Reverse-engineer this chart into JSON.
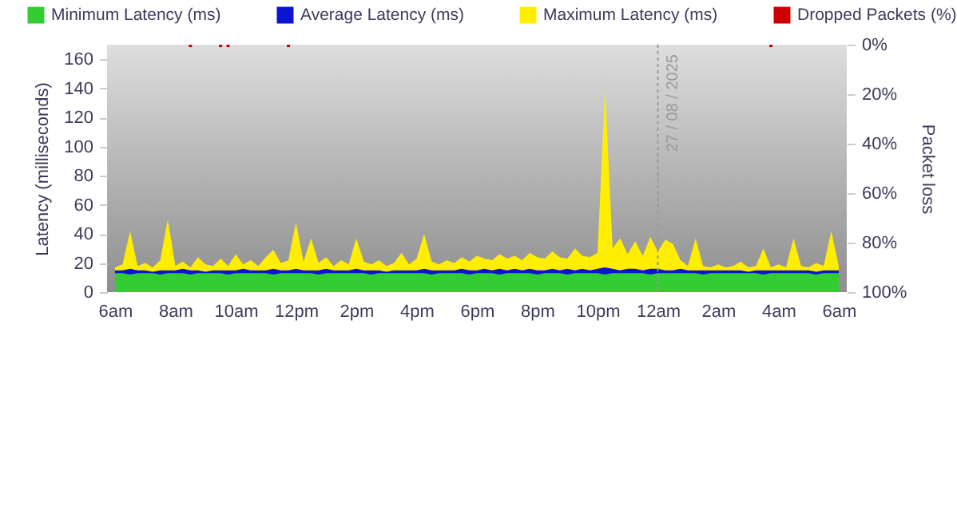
{
  "chart_data": {
    "type": "area",
    "ylabel": "Latency (milliseconds)",
    "y2label": "Packet loss",
    "legend": "top",
    "grid": false,
    "x": [
      "2025-08-26T06:00",
      "2025-08-26T06:15",
      "2025-08-26T06:30",
      "2025-08-26T06:45",
      "2025-08-26T07:00",
      "2025-08-26T07:15",
      "2025-08-26T07:30",
      "2025-08-26T07:45",
      "2025-08-26T08:00",
      "2025-08-26T08:15",
      "2025-08-26T08:30",
      "2025-08-26T08:45",
      "2025-08-26T09:00",
      "2025-08-26T09:15",
      "2025-08-26T09:30",
      "2025-08-26T09:45",
      "2025-08-26T10:00",
      "2025-08-26T10:15",
      "2025-08-26T10:30",
      "2025-08-26T10:45",
      "2025-08-26T11:00",
      "2025-08-26T11:15",
      "2025-08-26T11:30",
      "2025-08-26T11:45",
      "2025-08-26T12:00",
      "2025-08-26T12:15",
      "2025-08-26T12:30",
      "2025-08-26T12:45",
      "2025-08-26T13:00",
      "2025-08-26T13:15",
      "2025-08-26T13:30",
      "2025-08-26T13:45",
      "2025-08-26T14:00",
      "2025-08-26T14:15",
      "2025-08-26T14:30",
      "2025-08-26T14:45",
      "2025-08-26T15:00",
      "2025-08-26T15:15",
      "2025-08-26T15:30",
      "2025-08-26T15:45",
      "2025-08-26T16:00",
      "2025-08-26T16:15",
      "2025-08-26T16:30",
      "2025-08-26T16:45",
      "2025-08-26T17:00",
      "2025-08-26T17:15",
      "2025-08-26T17:30",
      "2025-08-26T17:45",
      "2025-08-26T18:00",
      "2025-08-26T18:15",
      "2025-08-26T18:30",
      "2025-08-26T18:45",
      "2025-08-26T19:00",
      "2025-08-26T19:15",
      "2025-08-26T19:30",
      "2025-08-26T19:45",
      "2025-08-26T20:00",
      "2025-08-26T20:15",
      "2025-08-26T20:30",
      "2025-08-26T20:45",
      "2025-08-26T21:00",
      "2025-08-26T21:15",
      "2025-08-26T21:30",
      "2025-08-26T21:45",
      "2025-08-26T22:00",
      "2025-08-26T22:15",
      "2025-08-26T22:30",
      "2025-08-26T22:45",
      "2025-08-26T23:00",
      "2025-08-26T23:15",
      "2025-08-26T23:30",
      "2025-08-26T23:45",
      "2025-08-27T00:00",
      "2025-08-27T00:15",
      "2025-08-27T00:30",
      "2025-08-27T00:45",
      "2025-08-27T01:00",
      "2025-08-27T01:15",
      "2025-08-27T01:30",
      "2025-08-27T01:45",
      "2025-08-27T02:00",
      "2025-08-27T02:15",
      "2025-08-27T02:30",
      "2025-08-27T02:45",
      "2025-08-27T03:00",
      "2025-08-27T03:15",
      "2025-08-27T03:30",
      "2025-08-27T03:45",
      "2025-08-27T04:00",
      "2025-08-27T04:15",
      "2025-08-27T04:30",
      "2025-08-27T04:45",
      "2025-08-27T05:00",
      "2025-08-27T05:15",
      "2025-08-27T05:30",
      "2025-08-27T05:45",
      "2025-08-27T06:00"
    ],
    "xlim": [
      "2025-08-26T06:00",
      "2025-08-27T06:00"
    ],
    "xticks": [
      {
        "value": "2025-08-26T06:00",
        "label": "6am"
      },
      {
        "value": "2025-08-26T08:00",
        "label": "8am"
      },
      {
        "value": "2025-08-26T10:00",
        "label": "10am"
      },
      {
        "value": "2025-08-26T12:00",
        "label": "12pm"
      },
      {
        "value": "2025-08-26T14:00",
        "label": "2pm"
      },
      {
        "value": "2025-08-26T16:00",
        "label": "4pm"
      },
      {
        "value": "2025-08-26T18:00",
        "label": "6pm"
      },
      {
        "value": "2025-08-26T20:00",
        "label": "8pm"
      },
      {
        "value": "2025-08-26T22:00",
        "label": "10pm"
      },
      {
        "value": "2025-08-27T00:00",
        "label": "12am"
      },
      {
        "value": "2025-08-27T02:00",
        "label": "2am"
      },
      {
        "value": "2025-08-27T04:00",
        "label": "4am"
      },
      {
        "value": "2025-08-27T06:00",
        "label": "6am"
      }
    ],
    "ylim": [
      0,
      170
    ],
    "yticks": [
      0,
      20,
      40,
      60,
      80,
      100,
      120,
      140,
      160
    ],
    "y2lim": [
      100,
      0
    ],
    "y2ticks": [
      {
        "value": 0,
        "label": "0%"
      },
      {
        "value": 20,
        "label": "20%"
      },
      {
        "value": 40,
        "label": "40%"
      },
      {
        "value": 60,
        "label": "60%"
      },
      {
        "value": 80,
        "label": "80%"
      },
      {
        "value": 100,
        "label": "100%"
      }
    ],
    "series": [
      {
        "name": "Minimum Latency (ms)",
        "color": "#33cc33",
        "values": [
          13,
          13,
          12,
          13,
          13,
          13,
          12,
          13,
          13,
          13,
          12,
          13,
          13,
          13,
          13,
          12,
          13,
          13,
          13,
          13,
          13,
          12,
          13,
          13,
          13,
          13,
          13,
          12,
          13,
          13,
          13,
          13,
          13,
          13,
          12,
          13,
          13,
          13,
          13,
          13,
          13,
          13,
          12,
          13,
          13,
          13,
          13,
          12,
          13,
          13,
          13,
          12,
          13,
          13,
          13,
          13,
          12,
          13,
          13,
          13,
          12,
          13,
          13,
          13,
          13,
          12,
          13,
          13,
          13,
          13,
          13,
          12,
          13,
          13,
          13,
          13,
          13,
          13,
          12,
          13,
          13,
          13,
          13,
          13,
          13,
          13,
          12,
          13,
          13,
          13,
          13,
          13,
          13,
          12,
          13,
          13,
          13
        ]
      },
      {
        "name": "Average Latency (ms)",
        "color": "#0a14d2",
        "values": [
          15,
          15,
          16,
          15,
          15,
          14,
          15,
          15,
          15,
          16,
          15,
          15,
          14,
          15,
          15,
          15,
          15,
          16,
          15,
          15,
          15,
          16,
          15,
          15,
          16,
          15,
          15,
          15,
          16,
          15,
          15,
          15,
          16,
          15,
          15,
          15,
          14,
          15,
          15,
          15,
          15,
          16,
          15,
          15,
          15,
          15,
          16,
          15,
          15,
          16,
          15,
          16,
          15,
          16,
          15,
          16,
          15,
          15,
          16,
          15,
          16,
          15,
          16,
          15,
          16,
          17,
          16,
          15,
          16,
          16,
          15,
          16,
          16,
          15,
          15,
          16,
          15,
          15,
          15,
          15,
          15,
          15,
          15,
          15,
          14,
          15,
          15,
          15,
          15,
          15,
          15,
          15,
          15,
          14,
          15,
          15,
          15
        ]
      },
      {
        "name": "Maximum Latency (ms)",
        "color": "#ffee00",
        "values": [
          17,
          19,
          42,
          18,
          20,
          17,
          22,
          50,
          18,
          21,
          17,
          24,
          19,
          18,
          23,
          18,
          26,
          19,
          22,
          18,
          24,
          29,
          20,
          22,
          48,
          21,
          37,
          20,
          24,
          18,
          22,
          19,
          37,
          21,
          19,
          22,
          18,
          20,
          27,
          19,
          23,
          40,
          21,
          19,
          22,
          20,
          24,
          21,
          25,
          23,
          22,
          26,
          23,
          25,
          22,
          27,
          24,
          23,
          28,
          24,
          23,
          30,
          25,
          24,
          27,
          140,
          30,
          37,
          26,
          35,
          25,
          38,
          28,
          36,
          33,
          22,
          18,
          37,
          18,
          17,
          19,
          17,
          18,
          21,
          17,
          18,
          30,
          17,
          19,
          17,
          37,
          18,
          17,
          20,
          18,
          42,
          18
        ]
      },
      {
        "name": "Dropped Packets (%)",
        "color": "#cc0000",
        "type": "bar",
        "axis": "y2",
        "x": [
          "2025-08-26T08:30",
          "2025-08-26T09:30",
          "2025-08-26T09:45",
          "2025-08-26T11:45",
          "2025-08-27T03:45"
        ],
        "values": [
          1,
          1,
          1,
          1,
          1
        ]
      }
    ],
    "ref_lines": [
      {
        "axis": "x",
        "value": "2025-08-27T00:00",
        "label": "27 / 08 / 2025",
        "color": "#9a9a9a",
        "line_style": "dotted"
      }
    ]
  }
}
